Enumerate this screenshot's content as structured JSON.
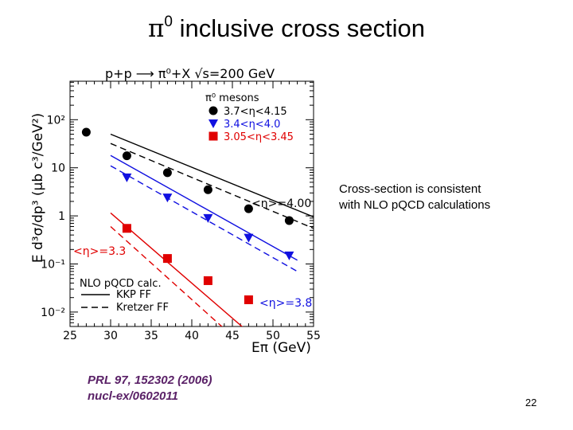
{
  "slide": {
    "title_symbol": "π",
    "title_sup": "0",
    "title_text": " inclusive cross section",
    "note_line1": "Cross-section is consistent",
    "note_line2": "with NLO pQCD calculations",
    "ref_line1": "PRL 97, 152302 (2006)",
    "ref_line2": "nucl-ex/0602011",
    "page_number": "22"
  },
  "chart_data": {
    "type": "scatter",
    "title": "p+p ⟶ π⁰+X   √s=200 GeV",
    "xlabel": "Eπ (GeV)",
    "ylabel": "E d³σ/dp³ (μb c³/GeV²)",
    "xlim": [
      25,
      55
    ],
    "ylim_log10": [
      -2.3,
      2.8
    ],
    "yscale": "log",
    "x_ticks": [
      {
        "value": 25,
        "label": "25"
      },
      {
        "value": 30,
        "label": "30"
      },
      {
        "value": 35,
        "label": "35"
      },
      {
        "value": 40,
        "label": "40"
      },
      {
        "value": 45,
        "label": "45"
      },
      {
        "value": 50,
        "label": "50"
      },
      {
        "value": 55,
        "label": "55"
      }
    ],
    "y_ticks": [
      {
        "log": 2,
        "label": "10²"
      },
      {
        "log": 1,
        "label": "10"
      },
      {
        "log": 0,
        "label": "1"
      },
      {
        "log": -1,
        "label": "10⁻¹"
      },
      {
        "log": -2,
        "label": "10⁻²"
      }
    ],
    "legend_title": "π⁰ mesons",
    "series": [
      {
        "name": "3.7<η<4.15",
        "marker": "circle",
        "color": "#000000",
        "x": [
          27,
          32,
          37,
          42,
          47,
          52
        ],
        "y": [
          55,
          17.8,
          7.9,
          3.5,
          1.41,
          0.8
        ]
      },
      {
        "name": "3.4<η<4.0",
        "marker": "triangle",
        "color": "#1010e0",
        "x": [
          32,
          37,
          42,
          47,
          52
        ],
        "y": [
          6.3,
          2.4,
          0.9,
          0.35,
          0.15
        ]
      },
      {
        "name": "3.05<η<3.45",
        "marker": "square",
        "color": "#e00000",
        "x": [
          32,
          37,
          42,
          47
        ],
        "y": [
          0.55,
          0.13,
          0.045,
          0.018
        ]
      }
    ],
    "curves": [
      {
        "name": "KKP FF",
        "color": "#000000",
        "style": "solid",
        "x1": 30,
        "y1": 50,
        "x2": 55,
        "y2": 0.95
      },
      {
        "name": "Kretzer FF",
        "color": "#000000",
        "style": "dashed",
        "x1": 30,
        "y1": 32,
        "x2": 55,
        "y2": 0.55
      },
      {
        "name": "KKP FF",
        "color": "#1010e0",
        "style": "solid",
        "x1": 30,
        "y1": 18,
        "x2": 53,
        "y2": 0.12
      },
      {
        "name": "Kretzer FF",
        "color": "#1010e0",
        "style": "dashed",
        "x1": 30,
        "y1": 11,
        "x2": 53,
        "y2": 0.07
      },
      {
        "name": "KKP FF",
        "color": "#e00000",
        "style": "solid",
        "x1": 30,
        "y1": 1.15,
        "x2": 46.5,
        "y2": 0.0045
      },
      {
        "name": "Kretzer FF",
        "color": "#e00000",
        "style": "dashed",
        "x1": 30,
        "y1": 0.6,
        "x2": 44,
        "y2": 0.0045
      }
    ],
    "annotations": [
      {
        "text": "<η>=4.00",
        "color": "#000000"
      },
      {
        "text": "<η>=3.8",
        "color": "#1010e0"
      },
      {
        "text": "<η>=3.3",
        "color": "#e00000"
      }
    ],
    "calc_legend_title": "NLO pQCD calc.",
    "calc_legend": [
      "KKP FF",
      "Kretzer FF"
    ]
  }
}
